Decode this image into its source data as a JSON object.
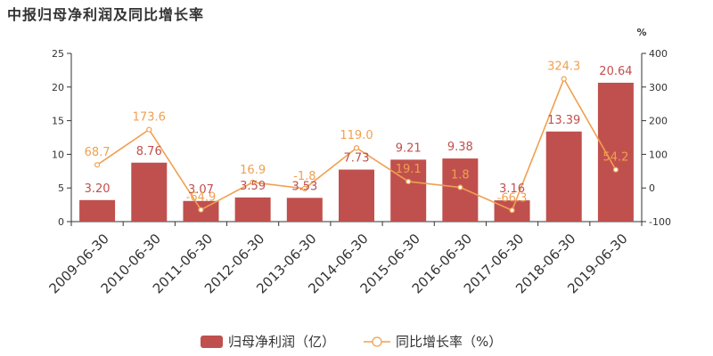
{
  "title": "中报归母净利润及同比增长率",
  "colors": {
    "bar": "#c0504d",
    "line": "#f0a050",
    "axis": "#333333"
  },
  "chart_data": {
    "type": "bar",
    "title": "中报归母净利润及同比增长率",
    "categories": [
      "2009-06-30",
      "2010-06-30",
      "2011-06-30",
      "2012-06-30",
      "2013-06-30",
      "2014-06-30",
      "2015-06-30",
      "2016-06-30",
      "2017-06-30",
      "2018-06-30",
      "2019-06-30"
    ],
    "series": [
      {
        "name": "归母净利润（亿）",
        "type": "bar",
        "axis": "left",
        "values": [
          3.2,
          8.76,
          3.07,
          3.59,
          3.53,
          7.73,
          9.21,
          9.38,
          3.16,
          13.39,
          20.64
        ],
        "labels": [
          "3.20",
          "8.76",
          "3.07",
          "3.59",
          "3.53",
          "7.73",
          "9.21",
          "9.38",
          "3.16",
          "13.39",
          "20.64"
        ]
      },
      {
        "name": "同比增长率（%）",
        "type": "line",
        "axis": "right",
        "values": [
          68.7,
          173.6,
          -64.9,
          16.9,
          -1.8,
          119.0,
          19.1,
          1.8,
          -66.3,
          324.3,
          54.2
        ],
        "labels": [
          "68.7",
          "173.6",
          "-64.9",
          "16.9",
          "-1.8",
          "119.0",
          "19.1",
          "1.8",
          "-66.3",
          "324.3",
          "54.2"
        ]
      }
    ],
    "yLeft": {
      "min": 0,
      "max": 25,
      "ticks": [
        "0",
        "5",
        "10",
        "15",
        "20",
        "25"
      ]
    },
    "yRight": {
      "min": -100,
      "max": 400,
      "unit": "%",
      "ticks": [
        "-100",
        "0",
        "100",
        "200",
        "300",
        "400"
      ]
    },
    "legend": {
      "position": "bottom"
    },
    "grid": false
  }
}
